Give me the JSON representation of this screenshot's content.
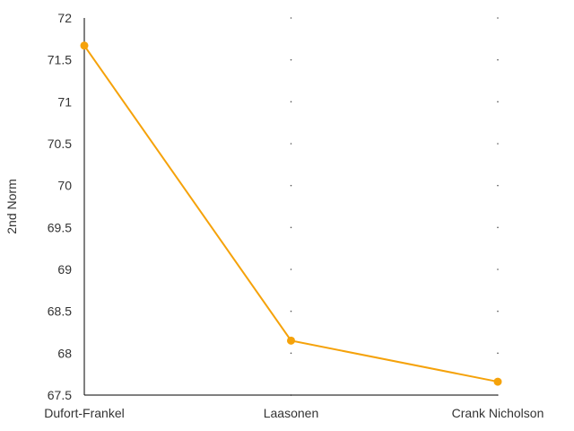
{
  "chart_data": {
    "type": "line",
    "title": "",
    "xlabel": "",
    "ylabel": "2nd Norm",
    "categories": [
      "Dufort-Frankel",
      "Laasonen",
      "Crank Nicholson"
    ],
    "series": [
      {
        "values": [
          71.67,
          68.15,
          67.66
        ]
      }
    ],
    "ylim": [
      67.5,
      72
    ],
    "yticks": [
      "67.5",
      "68",
      "68.5",
      "69",
      "69.5",
      "70",
      "70.5",
      "71",
      "71.5",
      "72"
    ],
    "grid": "dotted",
    "legend": "none",
    "colors": {
      "series": "#f5a20a",
      "axis": "#000000",
      "text": "#333333"
    }
  }
}
